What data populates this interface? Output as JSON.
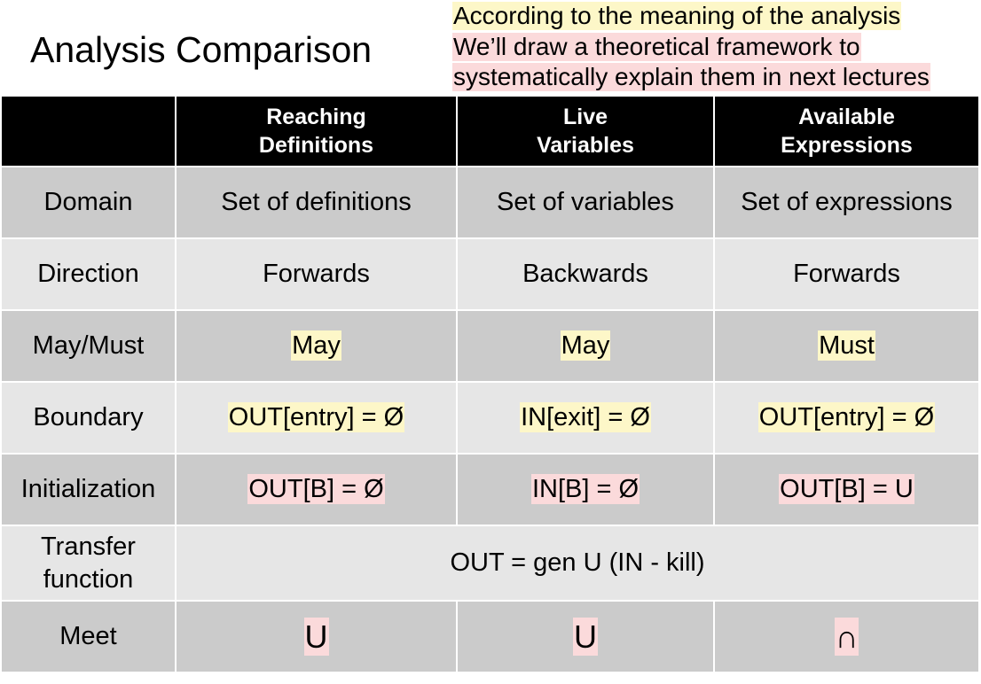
{
  "title": "Analysis Comparison",
  "notes": {
    "line1": "According to the meaning of the analysis",
    "line2": "We’ll draw a theoretical framework to",
    "line3": "systematically explain them in next lectures"
  },
  "columns": {
    "reaching_1": "Reaching",
    "reaching_2": "Definitions",
    "live_1": "Live",
    "live_2": "Variables",
    "available_1": "Available",
    "available_2": "Expressions"
  },
  "rows": {
    "domain": {
      "label": "Domain",
      "reaching": "Set of definitions",
      "live": "Set of variables",
      "available": "Set of expressions"
    },
    "direction": {
      "label": "Direction",
      "reaching": "Forwards",
      "live": "Backwards",
      "available": "Forwards"
    },
    "maymust": {
      "label": "May/Must",
      "reaching": "May",
      "live": "May",
      "available": "Must"
    },
    "boundary": {
      "label": "Boundary",
      "reaching": "OUT[entry] = Ø",
      "live": "IN[exit] = Ø",
      "available": "OUT[entry] = Ø"
    },
    "initialization": {
      "label": "Initialization",
      "reaching": "OUT[B] = Ø",
      "live": "IN[B] = Ø",
      "available": "OUT[B] = U"
    },
    "transfer": {
      "label_1": "Transfer",
      "label_2": "function",
      "value": "OUT = gen U (IN - kill)"
    },
    "meet": {
      "label": "Meet",
      "reaching": "U",
      "live": "U",
      "available": "∩"
    }
  },
  "colors": {
    "header_bg": "#000000",
    "row_dark": "#cbcbcb",
    "row_light": "#e6e6e6",
    "highlight_yellow": "#fdf7c8",
    "highlight_pink": "#fbdadb"
  }
}
